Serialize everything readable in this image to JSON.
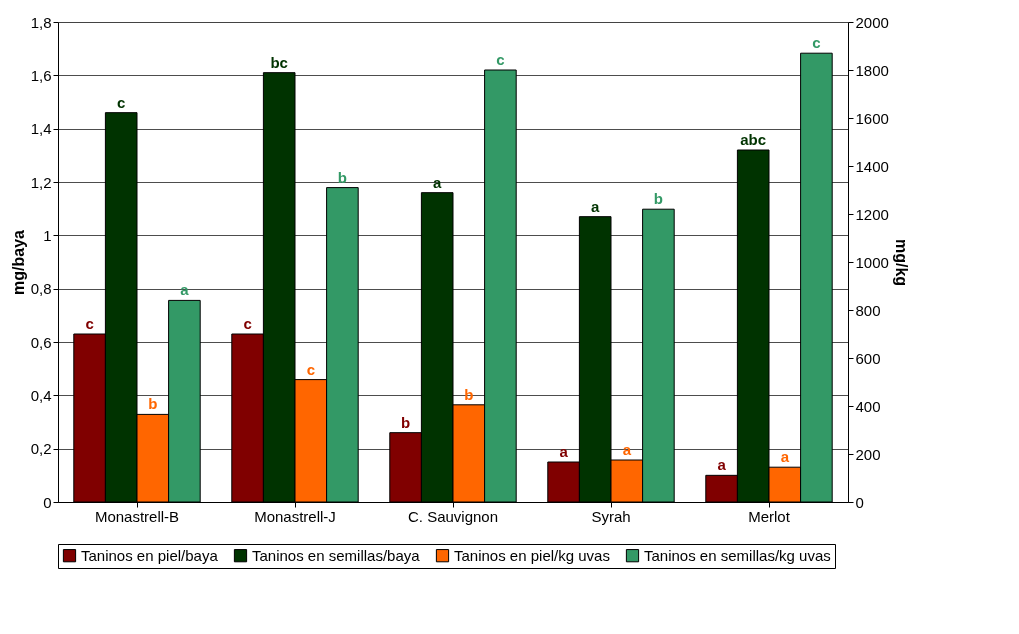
{
  "chart_data": {
    "type": "bar",
    "ylabel": "mg/baya",
    "y2label": "mg/kg",
    "categories": [
      "Monastrell-B",
      "Monastrell-J",
      "C. Sauvignon",
      "Syrah",
      "Merlot"
    ],
    "series": [
      {
        "name": "Taninos en piel/baya",
        "color": "#800000",
        "values": [
          0.63,
          0.63,
          0.26,
          0.15,
          0.1
        ],
        "value_labels": [
          "c",
          "c",
          "b",
          "a",
          "a"
        ]
      },
      {
        "name": "Taninos en semillas/baya",
        "color": "#003300",
        "values": [
          1.46,
          1.61,
          1.16,
          1.07,
          1.32
        ],
        "value_labels": [
          "c",
          "bc",
          "a",
          "a",
          "abc"
        ]
      },
      {
        "name": "Taninos en piel/kg uvas",
        "color": "#ff6600",
        "axis": "y2",
        "values": [
          365,
          510,
          405,
          175,
          145
        ],
        "value_labels": [
          "b",
          "c",
          "b",
          "a",
          "a"
        ]
      },
      {
        "name": "Taninos en semillas/kg uvas",
        "color": "#339966",
        "axis": "y2",
        "values": [
          840,
          1310,
          1800,
          1220,
          1870
        ],
        "value_labels": [
          "a",
          "b",
          "c",
          "b",
          "c"
        ]
      }
    ],
    "ylim": [
      0,
      1.8
    ],
    "yticks": [
      0,
      {
        "value": 0.2,
        "label": "0,2"
      },
      {
        "value": 0.4,
        "label": "0,4"
      },
      {
        "value": 0.6,
        "label": "0,6"
      },
      {
        "value": 0.8,
        "label": "0,8"
      },
      1,
      {
        "value": 1.2,
        "label": "1,2"
      },
      {
        "value": 1.4,
        "label": "1,4"
      },
      {
        "value": 1.6,
        "label": "1,6"
      },
      {
        "value": 1.8,
        "label": "1,8"
      }
    ],
    "y2lim": [
      0,
      2000
    ],
    "y2ticks": [
      0,
      200,
      400,
      600,
      800,
      1000,
      1200,
      1400,
      1600,
      1800,
      2000
    ],
    "grid": "y",
    "legend": "bottom"
  }
}
